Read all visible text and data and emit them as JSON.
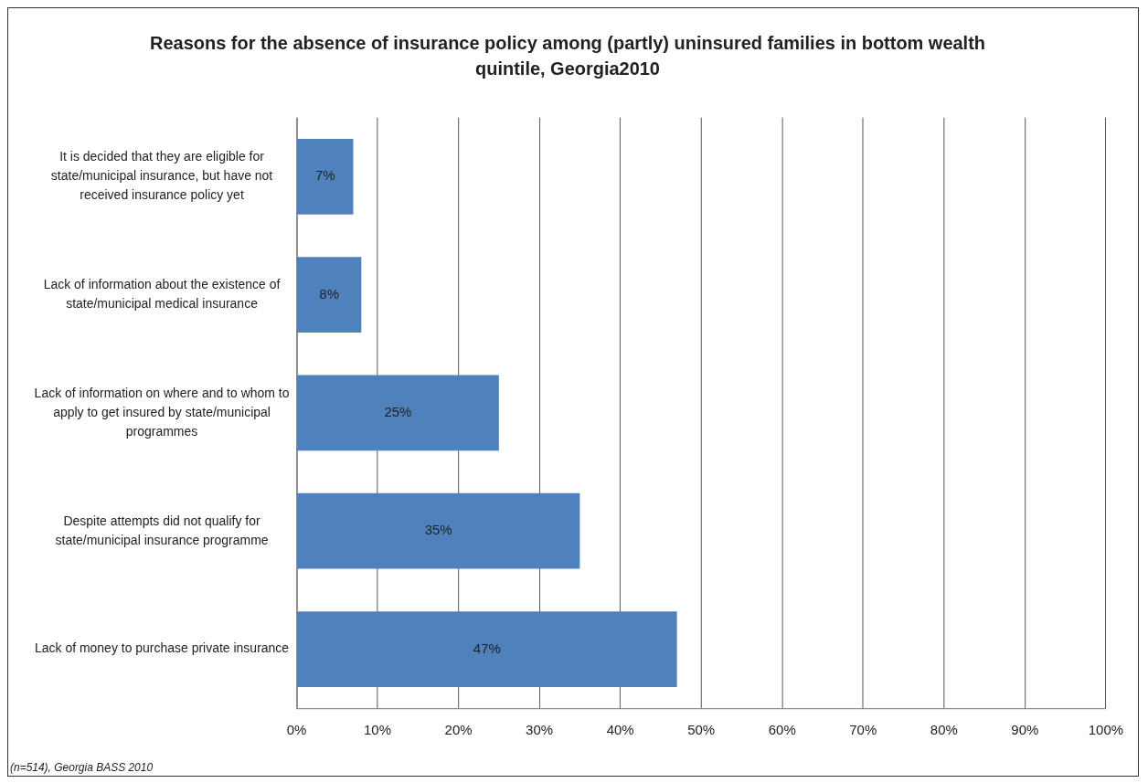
{
  "chart_data": {
    "type": "bar",
    "orientation": "horizontal",
    "title": "Reasons for the absence of insurance policy among (partly) uninsured families in bottom wealth quintile, Georgia2010",
    "categories": [
      "It is decided that they are eligible for state/municipal insurance, but have not received insurance policy yet",
      "Lack of information about the existence of state/municipal medical insurance",
      "Lack of information on where and to whom to apply to get insured by state/municipal programmes",
      "Despite attempts did not qualify for state/municipal insurance programme",
      "Lack of money to purchase private insurance"
    ],
    "values": [
      7,
      8,
      25,
      35,
      47
    ],
    "value_labels": [
      "7%",
      "8%",
      "25%",
      "35%",
      "47%"
    ],
    "color": "#4f81bd",
    "xlim": [
      0,
      100
    ],
    "xticks": [
      {
        "value": 0,
        "label": "0%"
      },
      {
        "value": 10,
        "label": "10%"
      },
      {
        "value": 20,
        "label": "20%"
      },
      {
        "value": 30,
        "label": "30%"
      },
      {
        "value": 40,
        "label": "40%"
      },
      {
        "value": 50,
        "label": "50%"
      },
      {
        "value": 60,
        "label": "60%"
      },
      {
        "value": 70,
        "label": "70%"
      },
      {
        "value": 80,
        "label": "80%"
      },
      {
        "value": 90,
        "label": "90%"
      },
      {
        "value": 100,
        "label": "100%"
      }
    ],
    "grid": "x",
    "annotations": [
      "(n=514), Georgia BASS 2010"
    ]
  }
}
